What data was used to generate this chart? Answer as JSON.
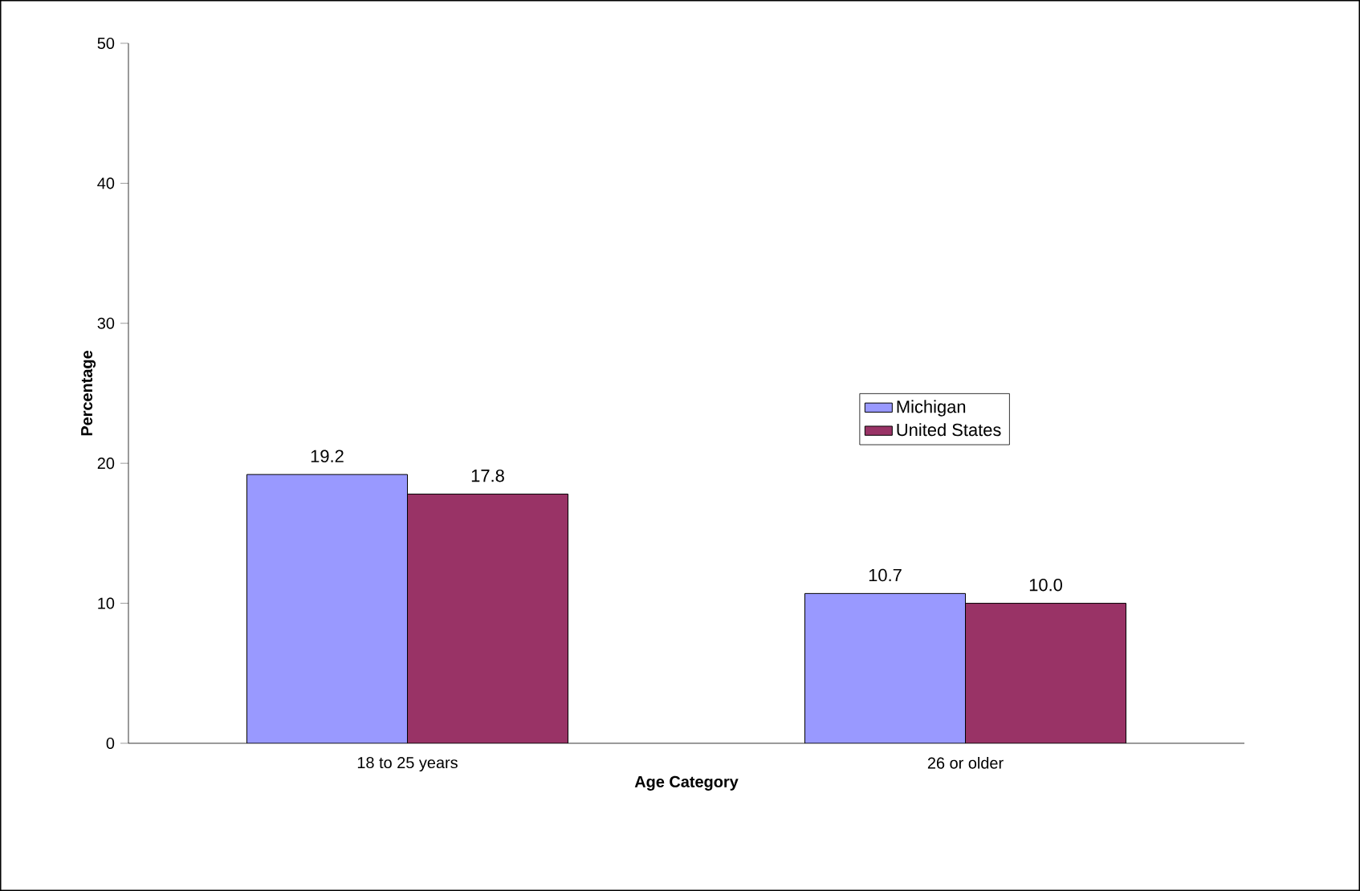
{
  "chart_data": {
    "type": "bar",
    "xlabel": "Age Category",
    "ylabel": "Percentage",
    "categories": [
      "18 to 25 years",
      "26 or older"
    ],
    "series": [
      {
        "name": "Michigan",
        "color": "#9999ff",
        "values": [
          19.2,
          10.7
        ],
        "value_labels": [
          "19.2",
          "10.7"
        ]
      },
      {
        "name": "United States",
        "color": "#993366",
        "values": [
          17.8,
          10.0
        ],
        "value_labels": [
          "17.8",
          "10.0"
        ]
      }
    ],
    "ylim": [
      0,
      50
    ],
    "yticks": [
      0,
      10,
      20,
      30,
      40,
      50
    ],
    "grid": false,
    "legend": "right"
  }
}
